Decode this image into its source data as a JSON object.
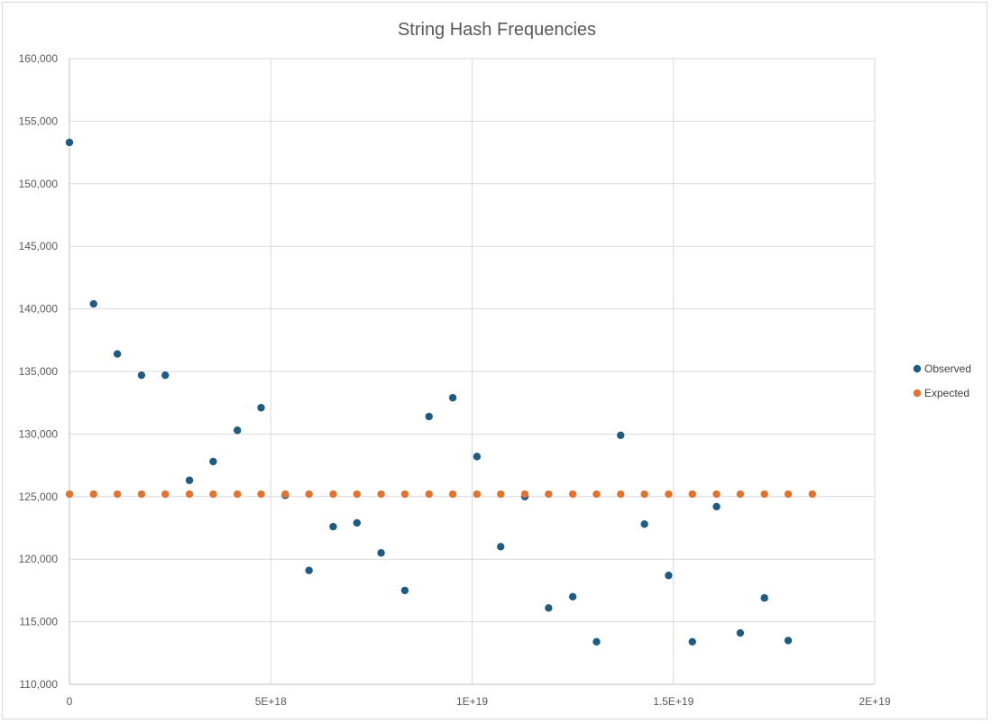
{
  "chart_data": {
    "type": "scatter",
    "title": "String Hash Frequencies",
    "xlabel": "",
    "ylabel": "",
    "xlim": [
      0,
      20000000000000000000
    ],
    "ylim": [
      110000,
      160000
    ],
    "x_ticks": [
      0,
      5000000000000000000,
      10000000000000000000,
      15000000000000000000,
      20000000000000000000
    ],
    "x_tick_labels": [
      "0",
      "5E+18",
      "1E+19",
      "1.5E+19",
      "2E+19"
    ],
    "y_ticks": [
      110000,
      115000,
      120000,
      125000,
      130000,
      135000,
      140000,
      145000,
      150000,
      155000,
      160000
    ],
    "y_tick_labels": [
      "110,000",
      "115,000",
      "120,000",
      "125,000",
      "130,000",
      "135,000",
      "140,000",
      "145,000",
      "150,000",
      "155,000",
      "160,000"
    ],
    "grid": true,
    "legend_position": "right",
    "series": [
      {
        "name": "Observed",
        "color": "#1f5c80",
        "x": [
          0,
          600000000000000000,
          1190000000000000000,
          1790000000000000000,
          2380000000000000000,
          2980000000000000000,
          3570000000000000000,
          4170000000000000000,
          4760000000000000000,
          5360000000000000000,
          5950000000000000000,
          6550000000000000000,
          7140000000000000000,
          7740000000000000000,
          8330000000000000000,
          8930000000000000000,
          9520000000000000000,
          10120000000000000000,
          10710000000000000000,
          11310000000000000000,
          11900000000000000000,
          12500000000000000000,
          13090000000000000000,
          13690000000000000000,
          14280000000000000000,
          14880000000000000000,
          15470000000000000000,
          16070000000000000000,
          16660000000000000000,
          17260000000000000000,
          17850000000000000000
        ],
        "y": [
          153300,
          140400,
          136400,
          134700,
          134700,
          126300,
          127800,
          130300,
          132100,
          125100,
          119100,
          122600,
          122900,
          120500,
          117500,
          131400,
          132900,
          128200,
          121000,
          125000,
          116100,
          117000,
          113400,
          129900,
          122800,
          118700,
          113400,
          124200,
          114100,
          116900,
          113500
        ]
      },
      {
        "name": "Expected",
        "color": "#e07433",
        "x": [
          0,
          600000000000000000,
          1190000000000000000,
          1790000000000000000,
          2380000000000000000,
          2980000000000000000,
          3570000000000000000,
          4170000000000000000,
          4760000000000000000,
          5360000000000000000,
          5950000000000000000,
          6550000000000000000,
          7140000000000000000,
          7740000000000000000,
          8330000000000000000,
          8930000000000000000,
          9520000000000000000,
          10120000000000000000,
          10710000000000000000,
          11310000000000000000,
          11900000000000000000,
          12500000000000000000,
          13090000000000000000,
          13690000000000000000,
          14280000000000000000,
          14880000000000000000,
          15470000000000000000,
          16070000000000000000,
          16660000000000000000,
          17260000000000000000,
          17850000000000000000,
          18450000000000000000
        ],
        "y": [
          125200,
          125200,
          125200,
          125200,
          125200,
          125200,
          125200,
          125200,
          125200,
          125200,
          125200,
          125200,
          125200,
          125200,
          125200,
          125200,
          125200,
          125200,
          125200,
          125200,
          125200,
          125200,
          125200,
          125200,
          125200,
          125200,
          125200,
          125200,
          125200,
          125200,
          125200,
          125200
        ]
      }
    ]
  }
}
